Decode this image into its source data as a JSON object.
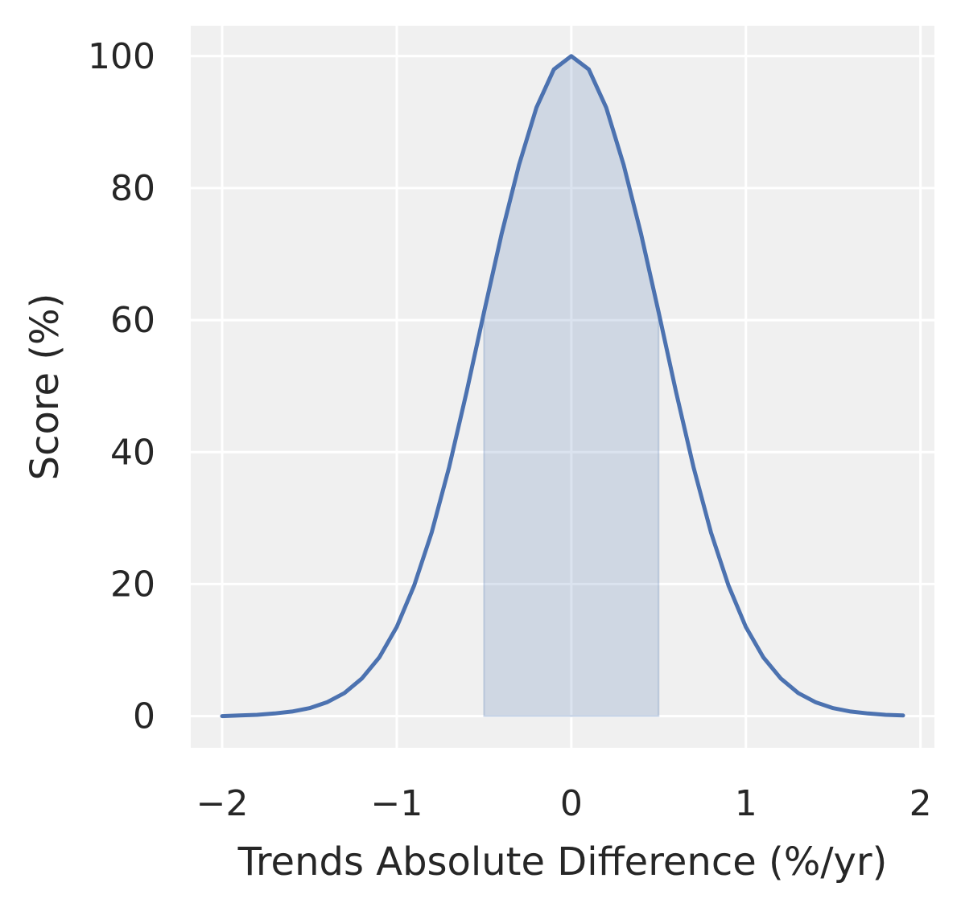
{
  "chart_data": {
    "type": "line",
    "title": "",
    "xlabel": "Trends Absolute Difference (%/yr)",
    "ylabel": "Score (%)",
    "xlim": [
      -2.18,
      2.08
    ],
    "ylim": [
      -4.8,
      104.6
    ],
    "grid": true,
    "legend": "none",
    "xticks": [
      {
        "value": -2,
        "label": "−2"
      },
      {
        "value": -1,
        "label": "−1"
      },
      {
        "value": 0,
        "label": "0"
      },
      {
        "value": 1,
        "label": "1"
      },
      {
        "value": 2,
        "label": "2"
      }
    ],
    "yticks": [
      {
        "value": 0,
        "label": "0"
      },
      {
        "value": 20,
        "label": "20"
      },
      {
        "value": 40,
        "label": "40"
      },
      {
        "value": 60,
        "label": "60"
      },
      {
        "value": 80,
        "label": "80"
      },
      {
        "value": 100,
        "label": "100"
      }
    ],
    "series": [
      {
        "x": [
          -2.0,
          -1.9,
          -1.8,
          -1.7,
          -1.6,
          -1.5,
          -1.4,
          -1.3,
          -1.2,
          -1.1,
          -1.0,
          -0.9,
          -0.8,
          -0.7,
          -0.6,
          -0.5,
          -0.4,
          -0.3,
          -0.2,
          -0.1,
          0.0,
          0.1,
          0.2,
          0.3,
          0.4,
          0.5,
          0.6,
          0.7,
          0.8,
          0.9,
          1.0,
          1.1,
          1.2,
          1.3,
          1.4,
          1.5,
          1.6,
          1.7,
          1.8,
          1.9
        ],
        "y": [
          0.0,
          0.1,
          0.2,
          0.4,
          0.7,
          1.2,
          2.1,
          3.5,
          5.7,
          8.9,
          13.5,
          19.8,
          27.8,
          37.7,
          49.1,
          61.2,
          73.0,
          83.5,
          92.2,
          98.0,
          100.0,
          98.0,
          92.2,
          83.5,
          73.0,
          61.2,
          49.1,
          37.7,
          27.8,
          19.8,
          13.5,
          8.9,
          5.7,
          3.5,
          2.1,
          1.2,
          0.7,
          0.4,
          0.2,
          0.1
        ],
        "color": "#4c72b0"
      }
    ],
    "shaded_region": {
      "x_start": -0.5,
      "x_end": 0.5,
      "color": "#4c72b0",
      "opacity": 0.2
    },
    "colors": {
      "background": "#f0f0f0",
      "grid": "#ffffff",
      "text": "#262626"
    }
  }
}
